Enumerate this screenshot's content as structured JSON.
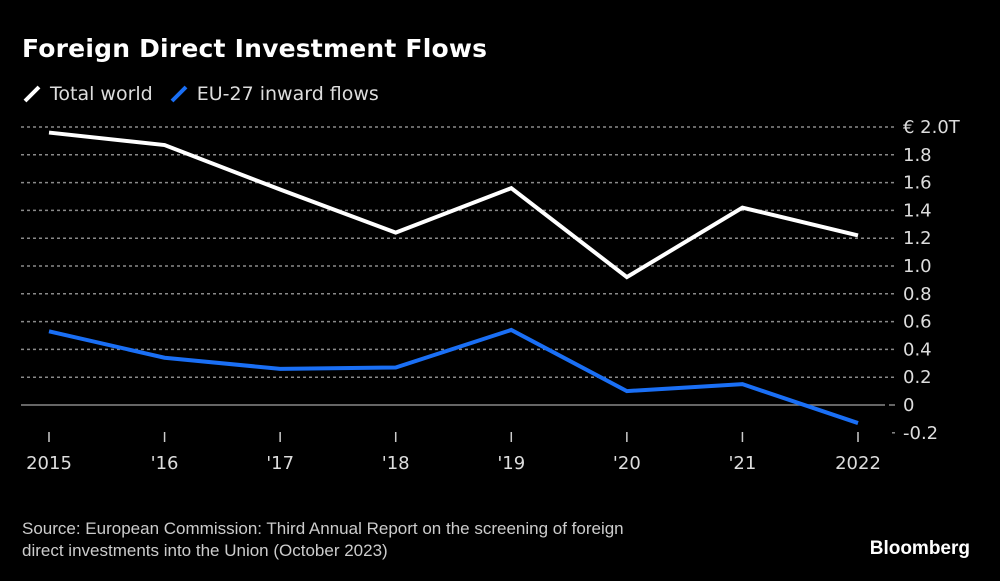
{
  "chart_data": {
    "type": "line",
    "title": "Foreign Direct Investment Flows",
    "xlabel": "",
    "ylabel": "",
    "x": [
      "2015",
      "'16",
      "'17",
      "'18",
      "'19",
      "'20",
      "'21",
      "2022"
    ],
    "series": [
      {
        "name": "Total world",
        "color": "#ffffff",
        "values": [
          1.96,
          1.87,
          1.55,
          1.24,
          1.56,
          0.92,
          1.42,
          1.22
        ]
      },
      {
        "name": "EU-27 inward flows",
        "color": "#1a6ff5",
        "values": [
          0.53,
          0.34,
          0.26,
          0.27,
          0.54,
          0.1,
          0.15,
          -0.13
        ]
      }
    ],
    "ylim": [
      -0.2,
      2.0
    ],
    "yticks": [
      {
        "value": 2.0,
        "label": "€ 2.0T"
      },
      {
        "value": 1.8,
        "label": "1.8"
      },
      {
        "value": 1.6,
        "label": "1.6"
      },
      {
        "value": 1.4,
        "label": "1.4"
      },
      {
        "value": 1.2,
        "label": "1.2"
      },
      {
        "value": 1.0,
        "label": "1.0"
      },
      {
        "value": 0.8,
        "label": "0.8"
      },
      {
        "value": 0.6,
        "label": "0.6"
      },
      {
        "value": 0.4,
        "label": "0.4"
      },
      {
        "value": 0.2,
        "label": "0.2"
      },
      {
        "value": 0,
        "label": "0"
      },
      {
        "value": -0.2,
        "label": "-0.2"
      }
    ],
    "grid": true,
    "legend_position": "top-left",
    "axis_side": "right"
  },
  "header": {
    "title": "Foreign Direct Investment Flows"
  },
  "legend": {
    "items": [
      {
        "label": "Total world",
        "color": "#ffffff"
      },
      {
        "label": "EU-27 inward flows",
        "color": "#1a6ff5"
      }
    ]
  },
  "footer": {
    "source_line1": "Source: European Commission: Third Annual Report on the screening of foreign",
    "source_line2": "direct investments into the Union (October 2023)",
    "brand": "Bloomberg"
  }
}
